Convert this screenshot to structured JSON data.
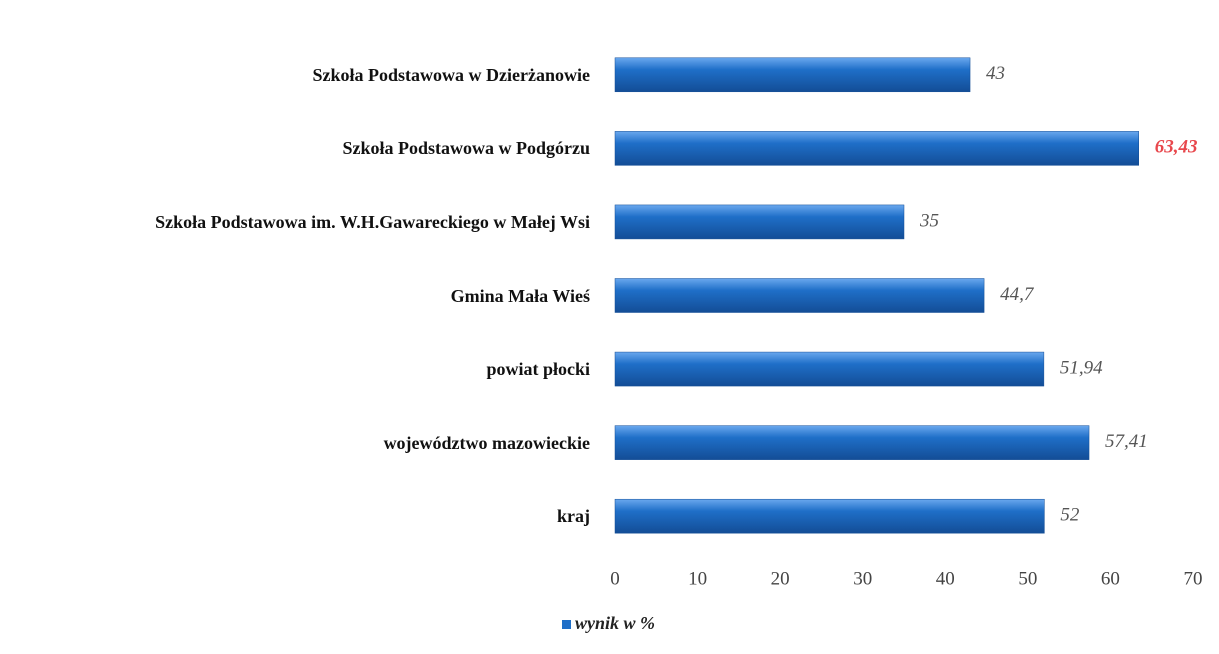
{
  "chart_data": {
    "type": "hbar",
    "categories": [
      "Szkoła Podstawowa w Dzierżanowie",
      "Szkoła Podstawowa w Podgórzu",
      "Szkoła Podstawowa im. W.H.Gawareckiego w Małej Wsi",
      "Gmina Mała Wieś",
      "powiat płocki",
      "województwo mazowieckie",
      "kraj"
    ],
    "series": [
      {
        "name": "wynik w %",
        "color": "#1f6fc8",
        "values": [
          43,
          63.43,
          35,
          44.7,
          51.94,
          57.41,
          52
        ],
        "value_labels": [
          "43",
          "63,43",
          "35",
          "44,7",
          "51,94",
          "57,41",
          "52"
        ],
        "value_label_colors": [
          "#555555",
          "#e8474c",
          "#555555",
          "#555555",
          "#555555",
          "#555555",
          "#555555"
        ]
      }
    ],
    "xlim": [
      0,
      70
    ],
    "xticks": [
      0,
      10,
      20,
      30,
      40,
      50,
      60,
      70
    ],
    "grid": false,
    "legend": "bottom"
  }
}
